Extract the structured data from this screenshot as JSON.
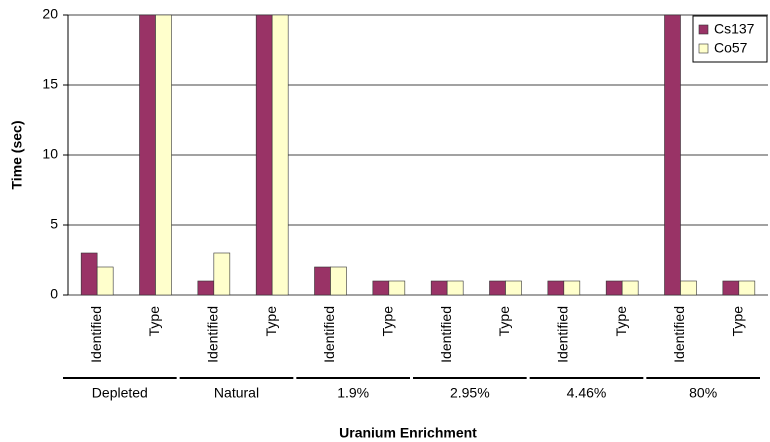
{
  "chart_data": {
    "type": "bar",
    "y_label": "Time (sec)",
    "x_label": "Uranium Enrichment",
    "categories": [
      "Identified",
      "Type",
      "Identified",
      "Type",
      "Identified",
      "Type",
      "Identified",
      "Type",
      "Identified",
      "Type",
      "Identified",
      "Type"
    ],
    "groups": [
      "Depleted",
      "Natural",
      "1.9%",
      "2.95%",
      "4.46%",
      "80%"
    ],
    "series": [
      {
        "name": "Cs137",
        "color": "#993366",
        "values": [
          3,
          20,
          1,
          20,
          2,
          1,
          1,
          1,
          1,
          1,
          20,
          1
        ]
      },
      {
        "name": "Co57",
        "color": "#ffffcc",
        "values": [
          2,
          20,
          3,
          20,
          2,
          1,
          1,
          1,
          1,
          1,
          1,
          1
        ]
      }
    ],
    "ylim": [
      0,
      20
    ],
    "yticks": [
      0,
      5,
      10,
      15,
      20
    ],
    "grid": true,
    "legend": "top-right"
  }
}
